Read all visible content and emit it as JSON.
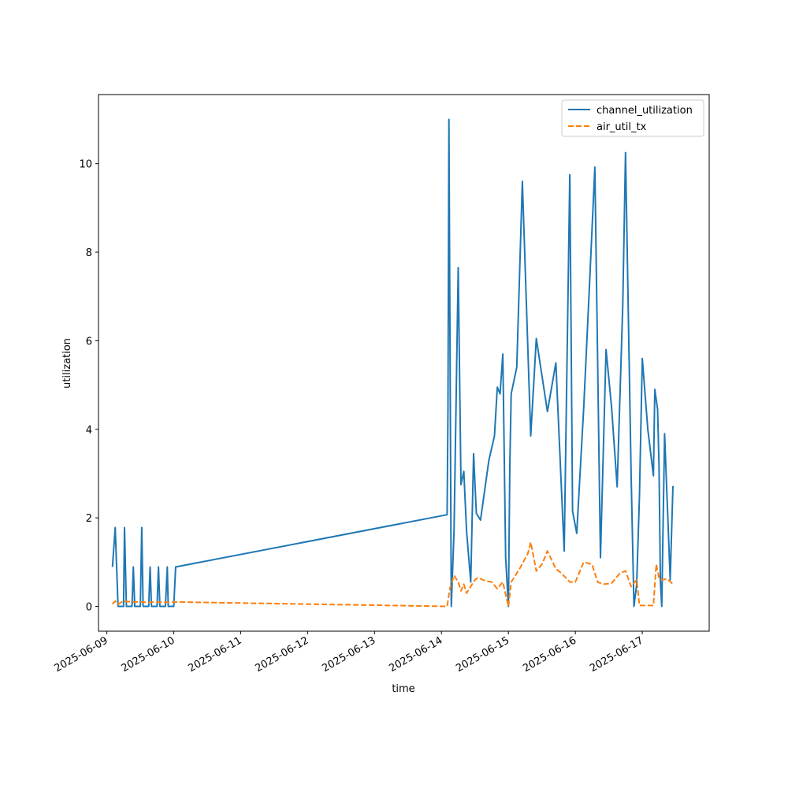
{
  "chart_data": {
    "type": "line",
    "title": "",
    "xlabel": "time",
    "ylabel": "utilization",
    "x_ticks": [
      "2025-06-09",
      "2025-06-10",
      "2025-06-11",
      "2025-06-12",
      "2025-06-13",
      "2025-06-14",
      "2025-06-15",
      "2025-06-16",
      "2025-06-17"
    ],
    "y_ticks": [
      0,
      2,
      4,
      6,
      8,
      10
    ],
    "xlim": [
      "2025-06-08T21:00",
      "2025-06-18T00:00"
    ],
    "ylim": [
      -0.56,
      11.56
    ],
    "grid": false,
    "legend_placement": "top-right",
    "series": [
      {
        "name": "channel_utilization",
        "color": "#1f77b4",
        "style": "solid",
        "points": [
          [
            "2025-06-09T02:00",
            0.89
          ],
          [
            "2025-06-09T03:00",
            1.78
          ],
          [
            "2025-06-09T04:00",
            0.0
          ],
          [
            "2025-06-09T05:00",
            0.0
          ],
          [
            "2025-06-09T06:00",
            0.0
          ],
          [
            "2025-06-09T06:20",
            1.78
          ],
          [
            "2025-06-09T07:00",
            0.0
          ],
          [
            "2025-06-09T08:00",
            0.0
          ],
          [
            "2025-06-09T09:00",
            0.0
          ],
          [
            "2025-06-09T09:30",
            0.89
          ],
          [
            "2025-06-09T10:00",
            0.0
          ],
          [
            "2025-06-09T11:00",
            0.0
          ],
          [
            "2025-06-09T12:00",
            0.0
          ],
          [
            "2025-06-09T12:30",
            1.78
          ],
          [
            "2025-06-09T13:00",
            0.0
          ],
          [
            "2025-06-09T14:00",
            0.0
          ],
          [
            "2025-06-09T15:00",
            0.0
          ],
          [
            "2025-06-09T15:30",
            0.89
          ],
          [
            "2025-06-09T16:00",
            0.0
          ],
          [
            "2025-06-09T17:00",
            0.0
          ],
          [
            "2025-06-09T18:00",
            0.0
          ],
          [
            "2025-06-09T18:30",
            0.89
          ],
          [
            "2025-06-09T19:00",
            0.0
          ],
          [
            "2025-06-09T20:00",
            0.0
          ],
          [
            "2025-06-09T21:00",
            0.0
          ],
          [
            "2025-06-09T21:40",
            0.89
          ],
          [
            "2025-06-09T22:00",
            0.0
          ],
          [
            "2025-06-09T23:00",
            0.0
          ],
          [
            "2025-06-10T00:00",
            0.0
          ],
          [
            "2025-06-10T00:40",
            0.89
          ],
          [
            "2025-06-14T02:00",
            2.07
          ],
          [
            "2025-06-14T02:20",
            4.45
          ],
          [
            "2025-06-14T02:40",
            11.0
          ],
          [
            "2025-06-14T03:30",
            0.0
          ],
          [
            "2025-06-14T04:30",
            1.7
          ],
          [
            "2025-06-14T06:00",
            7.65
          ],
          [
            "2025-06-14T07:00",
            2.75
          ],
          [
            "2025-06-14T08:00",
            3.05
          ],
          [
            "2025-06-14T09:00",
            1.7
          ],
          [
            "2025-06-14T10:30",
            0.55
          ],
          [
            "2025-06-14T11:30",
            3.45
          ],
          [
            "2025-06-14T12:30",
            2.1
          ],
          [
            "2025-06-14T14:00",
            1.95
          ],
          [
            "2025-06-14T17:00",
            3.3
          ],
          [
            "2025-06-14T19:00",
            3.85
          ],
          [
            "2025-06-14T20:00",
            4.95
          ],
          [
            "2025-06-14T21:00",
            4.8
          ],
          [
            "2025-06-14T22:00",
            5.7
          ],
          [
            "2025-06-14T23:00",
            1.1
          ],
          [
            "2025-06-15T00:00",
            0.0
          ],
          [
            "2025-06-15T00:30",
            3.2
          ],
          [
            "2025-06-15T01:00",
            4.8
          ],
          [
            "2025-06-15T03:00",
            5.4
          ],
          [
            "2025-06-15T05:00",
            9.6
          ],
          [
            "2025-06-15T08:00",
            3.85
          ],
          [
            "2025-06-15T10:00",
            6.05
          ],
          [
            "2025-06-15T14:00",
            4.4
          ],
          [
            "2025-06-15T17:00",
            5.5
          ],
          [
            "2025-06-15T20:00",
            1.25
          ],
          [
            "2025-06-15T22:00",
            9.75
          ],
          [
            "2025-06-15T23:00",
            2.15
          ],
          [
            "2025-06-16T00:30",
            1.65
          ],
          [
            "2025-06-16T03:00",
            4.5
          ],
          [
            "2025-06-16T05:00",
            7.15
          ],
          [
            "2025-06-16T07:00",
            9.92
          ],
          [
            "2025-06-16T09:00",
            1.1
          ],
          [
            "2025-06-16T11:00",
            5.8
          ],
          [
            "2025-06-16T13:00",
            4.5
          ],
          [
            "2025-06-16T15:00",
            2.7
          ],
          [
            "2025-06-16T17:00",
            6.8
          ],
          [
            "2025-06-16T18:00",
            10.25
          ],
          [
            "2025-06-16T20:00",
            3.0
          ],
          [
            "2025-06-16T21:00",
            0.0
          ],
          [
            "2025-06-16T22:00",
            0.5
          ],
          [
            "2025-06-16T23:00",
            2.5
          ],
          [
            "2025-06-17T00:00",
            5.6
          ],
          [
            "2025-06-17T02:00",
            4.0
          ],
          [
            "2025-06-17T04:00",
            2.95
          ],
          [
            "2025-06-17T04:30",
            4.9
          ],
          [
            "2025-06-17T05:30",
            4.45
          ],
          [
            "2025-06-17T06:00",
            3.2
          ],
          [
            "2025-06-17T06:30",
            0.55
          ],
          [
            "2025-06-17T07:00",
            0.0
          ],
          [
            "2025-06-17T08:00",
            3.9
          ],
          [
            "2025-06-17T10:00",
            0.6
          ],
          [
            "2025-06-17T11:00",
            2.72
          ]
        ]
      },
      {
        "name": "air_util_tx",
        "color": "#ff7f0e",
        "style": "dashed",
        "points": [
          [
            "2025-06-09T02:00",
            0.05
          ],
          [
            "2025-06-09T03:00",
            0.12
          ],
          [
            "2025-06-09T04:00",
            0.05
          ],
          [
            "2025-06-09T06:00",
            0.12
          ],
          [
            "2025-06-09T09:00",
            0.1
          ],
          [
            "2025-06-09T12:00",
            0.1
          ],
          [
            "2025-06-09T15:00",
            0.09
          ],
          [
            "2025-06-09T18:00",
            0.1
          ],
          [
            "2025-06-09T21:00",
            0.09
          ],
          [
            "2025-06-10T00:00",
            0.1
          ],
          [
            "2025-06-14T02:00",
            0.0
          ],
          [
            "2025-06-14T03:00",
            0.4
          ],
          [
            "2025-06-14T04:30",
            0.7
          ],
          [
            "2025-06-14T06:00",
            0.55
          ],
          [
            "2025-06-14T07:00",
            0.35
          ],
          [
            "2025-06-14T08:00",
            0.5
          ],
          [
            "2025-06-14T09:00",
            0.3
          ],
          [
            "2025-06-14T10:30",
            0.45
          ],
          [
            "2025-06-14T12:00",
            0.6
          ],
          [
            "2025-06-14T13:00",
            0.65
          ],
          [
            "2025-06-14T16:00",
            0.57
          ],
          [
            "2025-06-14T18:00",
            0.55
          ],
          [
            "2025-06-14T20:00",
            0.4
          ],
          [
            "2025-06-14T22:00",
            0.55
          ],
          [
            "2025-06-15T00:00",
            0.0
          ],
          [
            "2025-06-15T01:00",
            0.55
          ],
          [
            "2025-06-15T04:00",
            0.85
          ],
          [
            "2025-06-15T07:00",
            1.2
          ],
          [
            "2025-06-15T08:00",
            1.45
          ],
          [
            "2025-06-15T10:00",
            0.8
          ],
          [
            "2025-06-15T12:00",
            0.95
          ],
          [
            "2025-06-15T14:00",
            1.25
          ],
          [
            "2025-06-15T17:00",
            0.85
          ],
          [
            "2025-06-15T19:00",
            0.75
          ],
          [
            "2025-06-15T22:00",
            0.55
          ],
          [
            "2025-06-16T00:00",
            0.55
          ],
          [
            "2025-06-16T03:00",
            1.0
          ],
          [
            "2025-06-16T06:00",
            0.95
          ],
          [
            "2025-06-16T08:00",
            0.55
          ],
          [
            "2025-06-16T10:00",
            0.5
          ],
          [
            "2025-06-16T13:00",
            0.52
          ],
          [
            "2025-06-16T16:00",
            0.75
          ],
          [
            "2025-06-16T18:00",
            0.8
          ],
          [
            "2025-06-16T20:00",
            0.45
          ],
          [
            "2025-06-16T22:00",
            0.6
          ],
          [
            "2025-06-16T23:00",
            0.02
          ],
          [
            "2025-06-17T01:00",
            0.02
          ],
          [
            "2025-06-17T04:00",
            0.02
          ],
          [
            "2025-06-17T05:00",
            0.95
          ],
          [
            "2025-06-17T06:00",
            0.65
          ],
          [
            "2025-06-17T07:00",
            0.6
          ],
          [
            "2025-06-17T09:00",
            0.62
          ],
          [
            "2025-06-17T11:00",
            0.5
          ]
        ]
      }
    ]
  }
}
